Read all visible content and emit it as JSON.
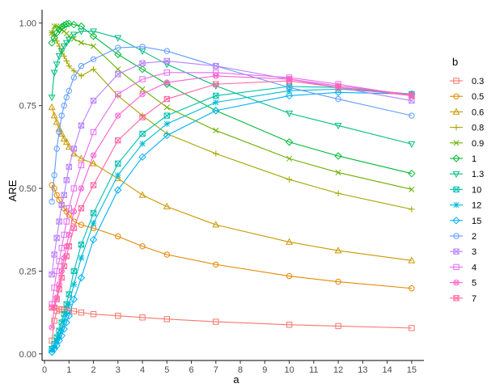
{
  "chart_data": {
    "type": "line",
    "xlabel": "a",
    "ylabel": "ARE",
    "xlim": [
      -0.1,
      15.5
    ],
    "ylim": [
      -0.02,
      1.04
    ],
    "xticks": [
      0,
      1,
      2,
      3,
      4,
      5,
      6,
      7,
      8,
      9,
      10,
      11,
      12,
      13,
      14,
      15
    ],
    "xtick_labels": [
      "0",
      "1",
      "2",
      "3",
      "4",
      "5",
      "6",
      "7",
      "8",
      "9",
      "10",
      "11",
      "12",
      "13",
      "14",
      "15"
    ],
    "yticks": [
      0,
      0.25,
      0.5,
      0.75,
      1.0
    ],
    "ytick_labels": [
      "0.00",
      "0.25",
      "0.50",
      "0.75",
      "1.00"
    ],
    "grid": false,
    "legend": {
      "title": "b",
      "position": "right"
    },
    "x": [
      0.3,
      0.4,
      0.5,
      0.6,
      0.7,
      0.8,
      0.9,
      1,
      1.2,
      1.5,
      2,
      3,
      4,
      5,
      7,
      10,
      12,
      15
    ],
    "series": [
      {
        "name": "0.3",
        "color": "#F8766D",
        "marker": "square",
        "values": [
          0.04,
          0.1,
          0.13,
          0.135,
          0.134,
          0.133,
          0.132,
          0.131,
          0.129,
          0.125,
          0.12,
          0.115,
          0.11,
          0.105,
          0.097,
          0.088,
          0.084,
          0.078
        ]
      },
      {
        "name": "0.5",
        "color": "#E58700",
        "marker": "circle",
        "values": [
          0.51,
          0.5,
          0.48,
          0.465,
          0.45,
          0.44,
          0.43,
          0.42,
          0.4,
          0.39,
          0.38,
          0.355,
          0.325,
          0.3,
          0.27,
          0.235,
          0.218,
          0.198
        ]
      },
      {
        "name": "0.6",
        "color": "#C99800",
        "marker": "triangle",
        "values": [
          0.745,
          0.72,
          0.7,
          0.68,
          0.665,
          0.65,
          0.64,
          0.625,
          0.605,
          0.59,
          0.575,
          0.53,
          0.48,
          0.445,
          0.39,
          0.338,
          0.312,
          0.282
        ]
      },
      {
        "name": "0.8",
        "color": "#A3A500",
        "marker": "plus",
        "values": [
          0.97,
          0.96,
          0.945,
          0.93,
          0.915,
          0.9,
          0.885,
          0.87,
          0.855,
          0.84,
          0.86,
          0.78,
          0.72,
          0.665,
          0.605,
          0.527,
          0.485,
          0.437
        ]
      },
      {
        "name": "0.9",
        "color": "#6BB100",
        "marker": "x",
        "values": [
          0.97,
          0.99,
          0.99,
          0.985,
          0.98,
          0.975,
          0.968,
          0.96,
          0.952,
          0.94,
          0.93,
          0.86,
          0.8,
          0.745,
          0.675,
          0.59,
          0.548,
          0.497
        ]
      },
      {
        "name": "1",
        "color": "#00BA38",
        "marker": "diamond",
        "values": [
          0.94,
          0.955,
          0.97,
          0.98,
          0.988,
          0.993,
          0.997,
          0.998,
          0.995,
          0.99,
          0.96,
          0.905,
          0.86,
          0.815,
          0.735,
          0.64,
          0.598,
          0.545
        ]
      },
      {
        "name": "1.3",
        "color": "#00BF7D",
        "marker": "triangle-down",
        "values": [
          0.775,
          0.85,
          0.875,
          0.9,
          0.915,
          0.93,
          0.94,
          0.95,
          0.965,
          0.975,
          0.975,
          0.955,
          0.915,
          0.875,
          0.81,
          0.727,
          0.69,
          0.634
        ]
      },
      {
        "name": "10",
        "color": "#00C0AF",
        "marker": "square-x",
        "values": [
          0.015,
          0.03,
          0.05,
          0.07,
          0.095,
          0.12,
          0.15,
          0.18,
          0.25,
          0.33,
          0.425,
          0.575,
          0.665,
          0.72,
          0.78,
          0.808,
          0.805,
          0.785
        ]
      },
      {
        "name": "12",
        "color": "#00BCD8",
        "marker": "asterisk",
        "values": [
          0.01,
          0.02,
          0.04,
          0.055,
          0.075,
          0.1,
          0.12,
          0.15,
          0.21,
          0.29,
          0.395,
          0.54,
          0.635,
          0.695,
          0.76,
          0.795,
          0.8,
          0.785
        ]
      },
      {
        "name": "15",
        "color": "#00B0F6",
        "marker": "diamond",
        "values": [
          0.005,
          0.015,
          0.025,
          0.04,
          0.055,
          0.075,
          0.095,
          0.115,
          0.165,
          0.23,
          0.345,
          0.495,
          0.595,
          0.66,
          0.735,
          0.78,
          0.79,
          0.785
        ]
      },
      {
        "name": "2",
        "color": "#619CFF",
        "marker": "circle",
        "values": [
          0.46,
          0.54,
          0.62,
          0.67,
          0.72,
          0.75,
          0.775,
          0.795,
          0.835,
          0.87,
          0.89,
          0.925,
          0.928,
          0.915,
          0.87,
          0.805,
          0.77,
          0.72
        ]
      },
      {
        "name": "3",
        "color": "#B983FF",
        "marker": "square-x",
        "values": [
          0.24,
          0.3,
          0.35,
          0.4,
          0.45,
          0.48,
          0.525,
          0.565,
          0.62,
          0.69,
          0.765,
          0.845,
          0.878,
          0.885,
          0.87,
          0.83,
          0.805,
          0.765
        ]
      },
      {
        "name": "4",
        "color": "#E76BF3",
        "marker": "square",
        "values": [
          0.15,
          0.2,
          0.25,
          0.28,
          0.32,
          0.36,
          0.4,
          0.44,
          0.5,
          0.57,
          0.67,
          0.785,
          0.83,
          0.85,
          0.85,
          0.835,
          0.815,
          0.78
        ]
      },
      {
        "name": "5",
        "color": "#FD61D1",
        "marker": "circle-x",
        "values": [
          0.08,
          0.14,
          0.17,
          0.21,
          0.25,
          0.29,
          0.325,
          0.36,
          0.43,
          0.5,
          0.6,
          0.72,
          0.785,
          0.82,
          0.84,
          0.83,
          0.81,
          0.783
        ]
      },
      {
        "name": "7",
        "color": "#FF67A4",
        "marker": "square-x",
        "values": [
          0.14,
          0.14,
          0.165,
          0.195,
          0.23,
          0.265,
          0.295,
          0.325,
          0.38,
          0.44,
          0.51,
          0.645,
          0.715,
          0.77,
          0.815,
          0.825,
          0.805,
          0.78
        ]
      }
    ]
  }
}
